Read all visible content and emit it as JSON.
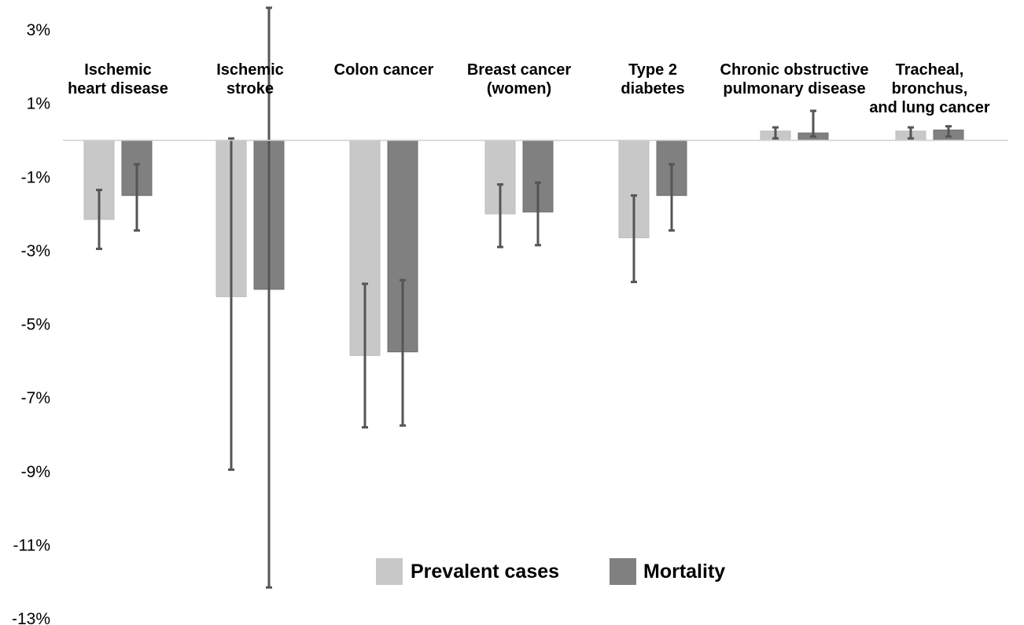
{
  "chart_data": {
    "type": "bar",
    "title": "",
    "xlabel": "",
    "ylabel": "",
    "ylim": [
      -13,
      3
    ],
    "yticks": [
      3,
      1,
      -1,
      -3,
      -5,
      -7,
      -9,
      -11,
      -13
    ],
    "ytick_labels": [
      "3%",
      "1%",
      "-1%",
      "-3%",
      "-5%",
      "-7%",
      "-9%",
      "-11%",
      "-13%"
    ],
    "grid": false,
    "legend": "bottom-center",
    "categories": [
      [
        "Ischemic",
        "heart disease"
      ],
      [
        "Ischemic",
        "stroke"
      ],
      [
        "Colon cancer"
      ],
      [
        "Breast cancer",
        "(women)"
      ],
      [
        "Type 2",
        "diabetes"
      ],
      [
        "Chronic obstructive",
        "pulmonary disease"
      ],
      [
        "Tracheal,",
        "bronchus,",
        "and lung cancer"
      ]
    ],
    "series": [
      {
        "name": "Prevalent cases",
        "color": "#c8c8c8",
        "values": [
          -2.15,
          -4.25,
          -5.85,
          -2.0,
          -2.65,
          0.25,
          0.25
        ],
        "error_low": [
          -2.95,
          -8.95,
          -7.8,
          -2.9,
          -3.85,
          0.05,
          0.05
        ],
        "error_high": [
          -1.35,
          0.05,
          -3.9,
          -1.2,
          -1.5,
          0.35,
          0.35
        ]
      },
      {
        "name": "Mortality",
        "color": "#808080",
        "values": [
          -1.5,
          -4.05,
          -5.75,
          -1.95,
          -1.5,
          0.2,
          0.28
        ],
        "error_low": [
          -2.45,
          -12.15,
          -7.75,
          -2.85,
          -2.45,
          0.1,
          0.1
        ],
        "error_high": [
          -0.65,
          3.6,
          -3.8,
          -1.15,
          -0.65,
          0.8,
          0.38
        ]
      }
    ]
  }
}
